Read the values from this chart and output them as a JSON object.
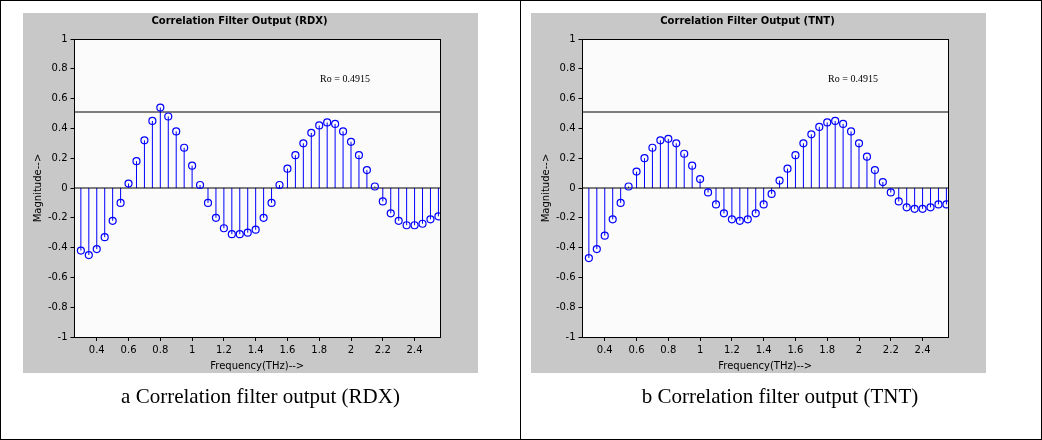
{
  "chart_data": [
    {
      "type": "lollipop",
      "title": "Correlation Filter Output (RDX)",
      "xlabel": "Frequency(THz)-->",
      "ylabel": "Magnitude-->",
      "marker": "circle",
      "grid": false,
      "x": [
        0.3,
        0.35,
        0.4,
        0.45,
        0.5,
        0.55,
        0.6,
        0.65,
        0.7,
        0.75,
        0.8,
        0.85,
        0.9,
        0.95,
        1.0,
        1.05,
        1.1,
        1.15,
        1.2,
        1.25,
        1.3,
        1.35,
        1.4,
        1.45,
        1.5,
        1.55,
        1.6,
        1.65,
        1.7,
        1.75,
        1.8,
        1.85,
        1.9,
        1.95,
        2.0,
        2.05,
        2.1,
        2.15,
        2.2,
        2.25,
        2.3,
        2.35,
        2.4,
        2.45,
        2.5,
        2.55
      ],
      "series": [
        {
          "color": "#0000ff",
          "values": [
            -0.42,
            -0.45,
            -0.41,
            -0.33,
            -0.22,
            -0.1,
            0.03,
            0.18,
            0.32,
            0.45,
            0.54,
            0.48,
            0.38,
            0.27,
            0.15,
            0.02,
            -0.1,
            -0.2,
            -0.27,
            -0.31,
            -0.31,
            -0.3,
            -0.28,
            -0.2,
            -0.1,
            0.02,
            0.13,
            0.22,
            0.3,
            0.37,
            0.42,
            0.44,
            0.43,
            0.38,
            0.31,
            0.22,
            0.12,
            0.01,
            -0.09,
            -0.17,
            -0.22,
            -0.25,
            -0.25,
            -0.24,
            -0.21,
            -0.19
          ]
        }
      ],
      "xlim": [
        0.26,
        2.56
      ],
      "xticks": [
        0.4,
        0.6,
        0.8,
        1,
        1.2,
        1.4,
        1.6,
        1.8,
        2,
        2.2,
        2.4
      ],
      "ylim": [
        -1,
        1
      ],
      "yticks": [
        -1,
        -0.8,
        -0.6,
        -0.4,
        -0.2,
        0,
        0.2,
        0.4,
        0.6,
        0.8,
        1
      ],
      "ref_lines": [
        {
          "axis": "y",
          "value": 0,
          "color": "#000000"
        },
        {
          "axis": "y",
          "value": 0.51,
          "color": "#000000"
        }
      ],
      "annotations": [
        "Ro = 0.4915",
        "a Correlation filter output (RDX)"
      ]
    },
    {
      "type": "lollipop",
      "title": "Correlation Filter Output (TNT)",
      "xlabel": "Frequency(THz)-->",
      "ylabel": "Magnitude-->",
      "marker": "circle",
      "grid": false,
      "x": [
        0.3,
        0.35,
        0.4,
        0.45,
        0.5,
        0.55,
        0.6,
        0.65,
        0.7,
        0.75,
        0.8,
        0.85,
        0.9,
        0.95,
        1.0,
        1.05,
        1.1,
        1.15,
        1.2,
        1.25,
        1.3,
        1.35,
        1.4,
        1.45,
        1.5,
        1.55,
        1.6,
        1.65,
        1.7,
        1.75,
        1.8,
        1.85,
        1.9,
        1.95,
        2.0,
        2.05,
        2.1,
        2.15,
        2.2,
        2.25,
        2.3,
        2.35,
        2.4,
        2.45,
        2.5,
        2.55
      ],
      "series": [
        {
          "color": "#0000ff",
          "values": [
            -0.47,
            -0.41,
            -0.32,
            -0.21,
            -0.1,
            0.01,
            0.11,
            0.2,
            0.27,
            0.32,
            0.33,
            0.3,
            0.23,
            0.15,
            0.06,
            -0.03,
            -0.11,
            -0.17,
            -0.21,
            -0.22,
            -0.21,
            -0.17,
            -0.11,
            -0.04,
            0.05,
            0.13,
            0.22,
            0.3,
            0.36,
            0.41,
            0.44,
            0.45,
            0.43,
            0.38,
            0.3,
            0.21,
            0.12,
            0.04,
            -0.03,
            -0.09,
            -0.13,
            -0.14,
            -0.14,
            -0.13,
            -0.11,
            -0.11
          ]
        }
      ],
      "xlim": [
        0.26,
        2.56
      ],
      "xticks": [
        0.4,
        0.6,
        0.8,
        1,
        1.2,
        1.4,
        1.6,
        1.8,
        2,
        2.2,
        2.4
      ],
      "ylim": [
        -1,
        1
      ],
      "yticks": [
        -1,
        -0.8,
        -0.6,
        -0.4,
        -0.2,
        0,
        0.2,
        0.4,
        0.6,
        0.8,
        1
      ],
      "ref_lines": [
        {
          "axis": "y",
          "value": 0,
          "color": "#000000"
        },
        {
          "axis": "y",
          "value": 0.51,
          "color": "#000000"
        }
      ],
      "annotations": [
        "Ro = 0.4915",
        "b Correlation filter output (TNT)"
      ]
    }
  ]
}
